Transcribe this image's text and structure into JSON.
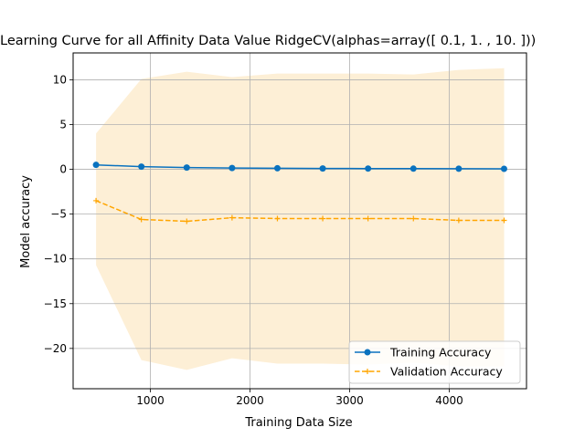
{
  "chart_data": {
    "type": "line",
    "title": "Learning Curve for all Affinity Data Value RidgeCV(alphas=array([ 0.1,  1. , 10. ]))",
    "xlabel": "Training Data Size",
    "ylabel": "Model accuracy",
    "xlim": [
      225,
      4775
    ],
    "ylim": [
      -24.5,
      13
    ],
    "x_ticks": [
      1000,
      2000,
      3000,
      4000
    ],
    "x_tick_labels": [
      "1000",
      "2000",
      "3000",
      "4000"
    ],
    "y_ticks": [
      10,
      5,
      0,
      -5,
      -10,
      -15,
      -20
    ],
    "y_tick_labels": [
      "10",
      "5",
      "0",
      "−5",
      "−10",
      "−15",
      "−20"
    ],
    "grid": true,
    "legend_position": "lower-right",
    "x": [
      455,
      910,
      1365,
      1820,
      2275,
      2730,
      3185,
      3640,
      4095,
      4550
    ],
    "series": [
      {
        "name": "Training Accuracy",
        "color": "#0a72bf",
        "line_style": "solid",
        "marker": "circle",
        "values": [
          0.5,
          0.3,
          0.2,
          0.15,
          0.12,
          0.1,
          0.09,
          0.08,
          0.07,
          0.06
        ]
      },
      {
        "name": "Validation Accuracy",
        "color": "#ffa500",
        "line_style": "dashed",
        "marker": "plus",
        "values": [
          -3.5,
          -5.6,
          -5.8,
          -5.4,
          -5.5,
          -5.5,
          -5.5,
          -5.5,
          -5.7,
          -5.7
        ],
        "band_color": "#fdefd6",
        "band_upper": [
          4.0,
          10.1,
          10.9,
          10.3,
          10.7,
          10.7,
          10.7,
          10.6,
          11.1,
          11.3
        ],
        "band_lower": [
          -10.7,
          -21.3,
          -22.4,
          -21.1,
          -21.7,
          -21.7,
          -21.8,
          -21.6,
          -22.0,
          -22.0
        ]
      }
    ]
  }
}
